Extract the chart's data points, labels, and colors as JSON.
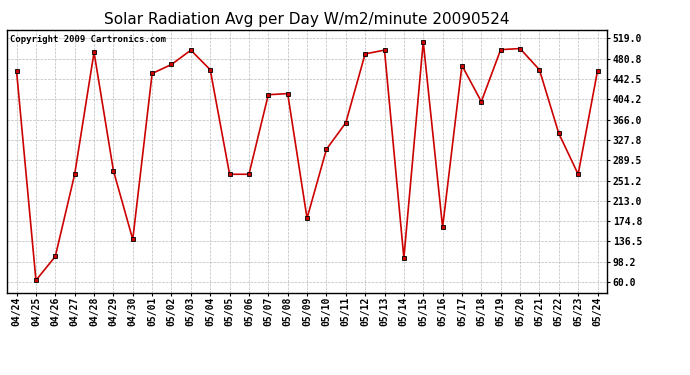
{
  "title": "Solar Radiation Avg per Day W/m2/minute 20090524",
  "copyright": "Copyright 2009 Cartronics.com",
  "labels": [
    "04/24",
    "04/25",
    "04/26",
    "04/27",
    "04/28",
    "04/29",
    "04/30",
    "05/01",
    "05/02",
    "05/03",
    "05/04",
    "05/05",
    "05/06",
    "05/07",
    "05/08",
    "05/09",
    "05/10",
    "05/11",
    "05/12",
    "05/13",
    "05/14",
    "05/15",
    "05/16",
    "05/17",
    "05/18",
    "05/19",
    "05/20",
    "05/21",
    "05/22",
    "05/23",
    "05/24"
  ],
  "values": [
    457,
    63,
    108,
    263,
    493,
    270,
    140,
    453,
    470,
    497,
    460,
    263,
    263,
    413,
    415,
    180,
    310,
    360,
    490,
    497,
    105,
    513,
    163,
    468,
    400,
    498,
    500,
    460,
    340,
    263,
    458
  ],
  "line_color": "#cc0000",
  "marker_color": "#000000",
  "bg_color": "#ffffff",
  "grid_color": "#aaaaaa",
  "yticks": [
    60.0,
    98.2,
    136.5,
    174.8,
    213.0,
    251.2,
    289.5,
    327.8,
    366.0,
    404.2,
    442.5,
    480.8,
    519.0
  ],
  "ylim": [
    40,
    535
  ],
  "title_fontsize": 11,
  "tick_fontsize": 7,
  "copyright_fontsize": 6.5
}
